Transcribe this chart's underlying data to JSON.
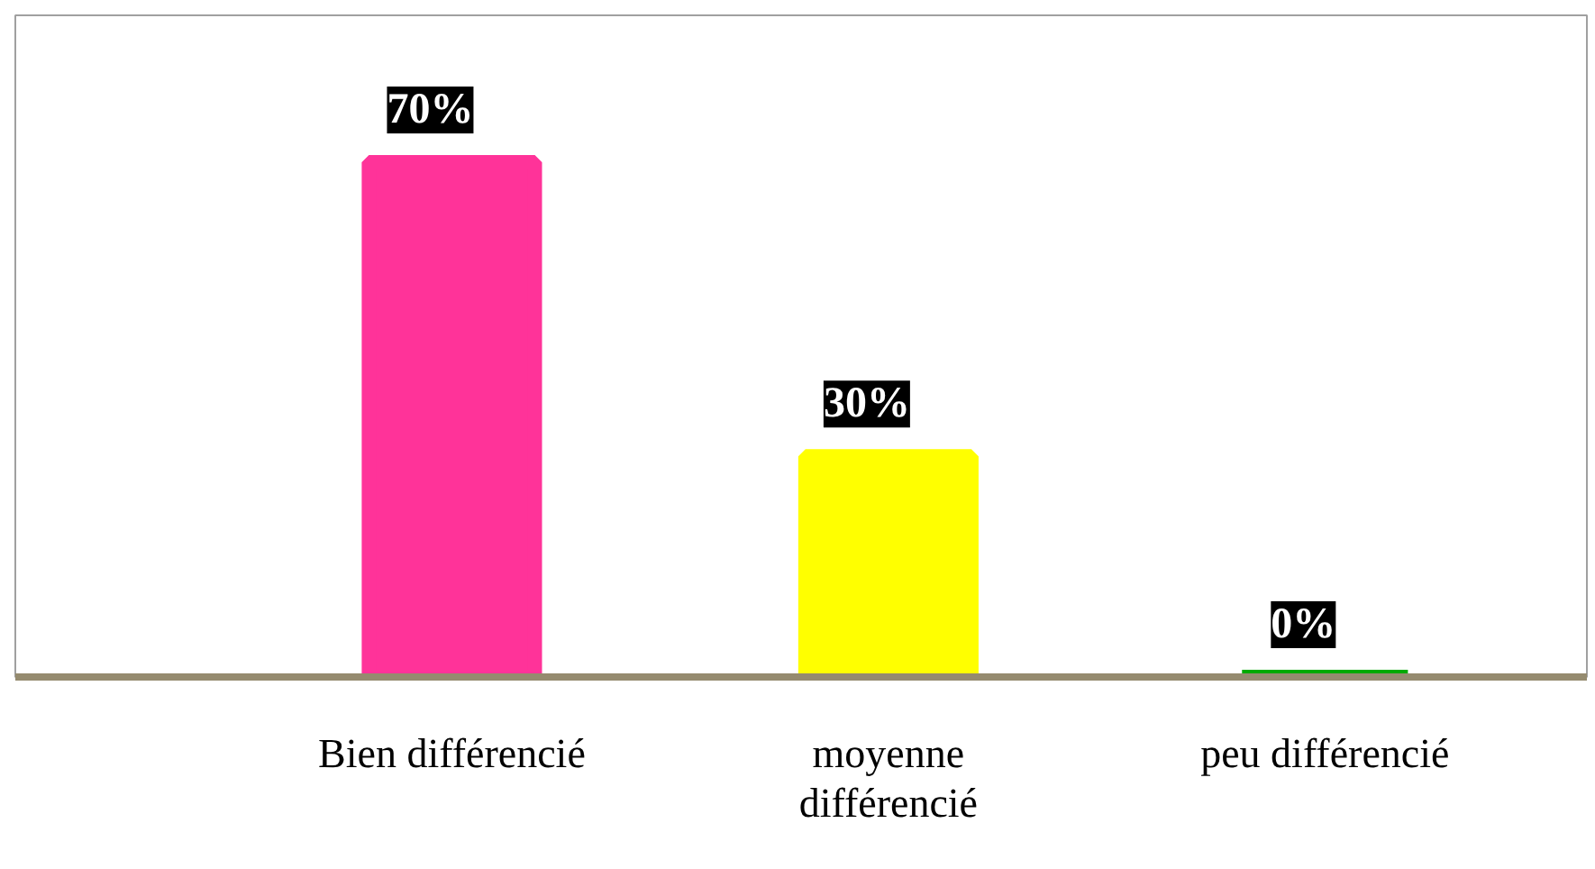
{
  "chart_data": {
    "type": "bar",
    "categories": [
      "Bien différencié",
      "moyenne\ndifférencié",
      "peu différencié"
    ],
    "values": [
      70,
      30,
      0
    ],
    "colors": [
      "#ff3399",
      "#ffff00",
      "#00aa00"
    ],
    "value_labels": [
      "70%",
      "30%",
      "0%"
    ],
    "ylim": [
      0,
      90
    ],
    "tick_labels": "x",
    "grid": false
  }
}
